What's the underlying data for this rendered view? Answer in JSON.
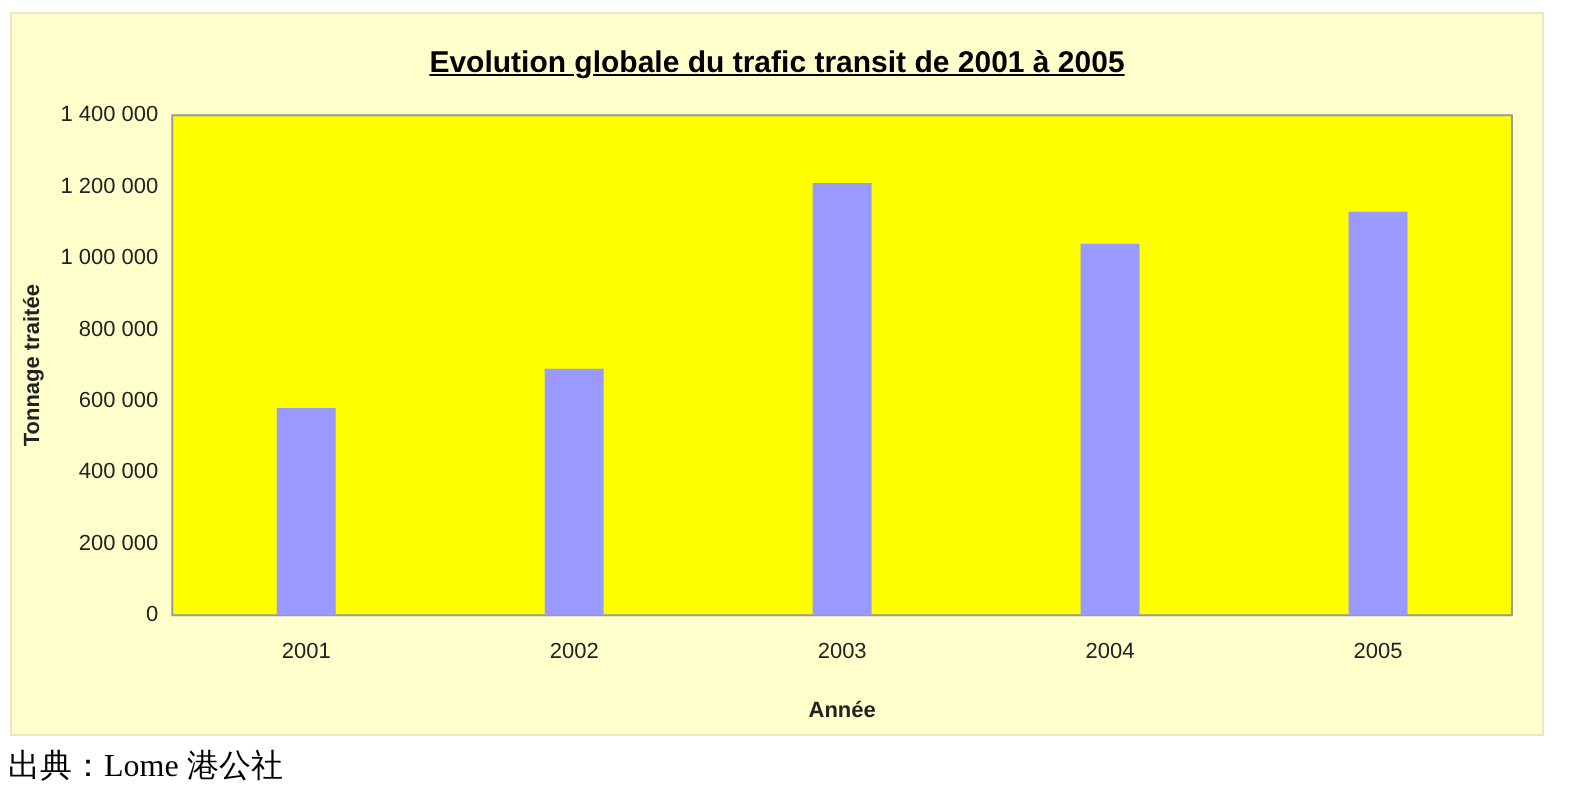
{
  "chart_data": {
    "type": "bar",
    "title": "Evolution globale du trafic transit de 2001 à 2005",
    "xlabel": "Année",
    "ylabel": "Tonnage traitée",
    "categories": [
      "2001",
      "2002",
      "2003",
      "2004",
      "2005"
    ],
    "values": [
      580000,
      690000,
      1210000,
      1040000,
      1130000
    ],
    "color": "#9999ff",
    "ylim": [
      0,
      1400000
    ],
    "yticks": [
      0,
      {
        "value": 200000,
        "label": "200 000"
      },
      {
        "value": 400000,
        "label": "400 000"
      },
      {
        "value": 600000,
        "label": "600 000"
      },
      {
        "value": 800000,
        "label": "800 000"
      },
      {
        "value": 1000000,
        "label": "1 000 000"
      },
      {
        "value": 1200000,
        "label": "1 200 000"
      },
      {
        "value": 1400000,
        "label": "1 400 000"
      }
    ],
    "grid": false,
    "legend": false,
    "annotations": [
      "出典：Lome 港公社"
    ]
  }
}
